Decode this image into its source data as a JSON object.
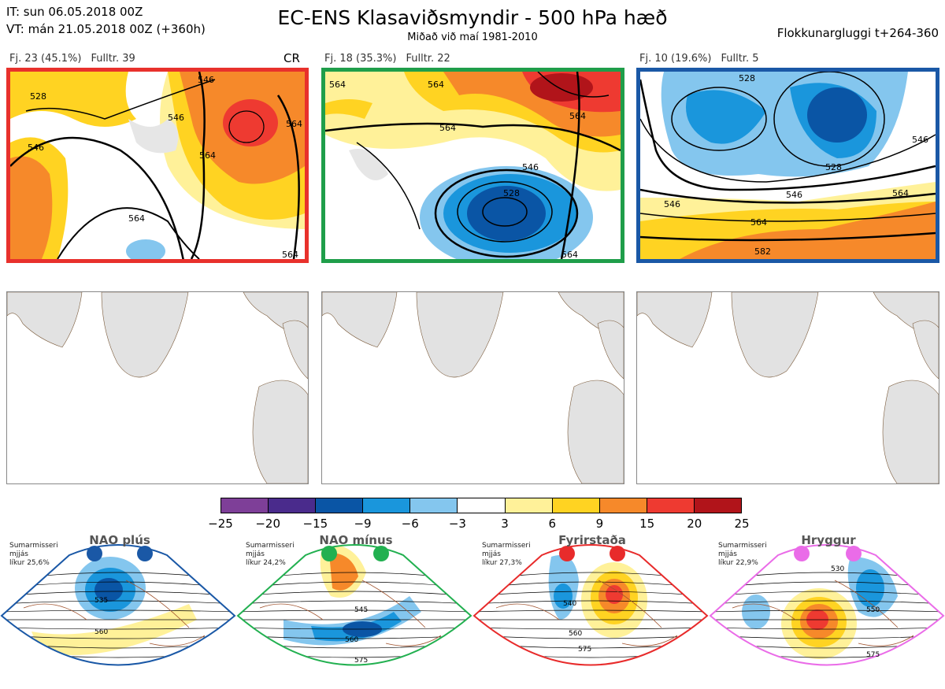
{
  "header": {
    "it_line": "IT: sun 06.05.2018 00Z",
    "vt_line": "VT: mán 21.05.2018 00Z  (+360h)",
    "title": "EC-ENS Klasaviðsmyndir - 500 hPa hæð",
    "subtitle": "Miðað við maí 1981-2010",
    "window": "Flokkunargluggi t+264-360"
  },
  "clusters": [
    {
      "fj": "Fj. 23 (45.1%)",
      "fulltr": "Fulltr. 39",
      "tag": "CR",
      "border_color": "#e8312c",
      "contour_labels": [
        "528",
        "546",
        "546",
        "564",
        "564",
        "546",
        "564",
        "564"
      ]
    },
    {
      "fj": "Fj. 18 (35.3%)",
      "fulltr": "Fulltr. 22",
      "tag": "",
      "border_color": "#1f9e4a",
      "contour_labels": [
        "564",
        "546",
        "528",
        "564",
        "564",
        "564",
        "564"
      ]
    },
    {
      "fj": "Fj. 10 (19.6%)",
      "fulltr": "Fulltr. 5",
      "tag": "",
      "border_color": "#1a58a6",
      "contour_labels": [
        "528",
        "528",
        "546",
        "546",
        "564",
        "564",
        "582",
        "546"
      ]
    }
  ],
  "colorbar": {
    "ticks": [
      "−25",
      "−20",
      "−15",
      "−9",
      "−6",
      "−3",
      "3",
      "6",
      "9",
      "15",
      "20",
      "25"
    ],
    "colors": [
      "#7e3f98",
      "#4a2b8c",
      "#0a55a5",
      "#1a96dc",
      "#84c6ee",
      "#ffffff",
      "#fff199",
      "#ffd322",
      "#f6892a",
      "#ee3a31",
      "#b1141a"
    ]
  },
  "regimes": [
    {
      "name": "NAO plús",
      "season": "Sumarmisseri",
      "smoothed": "mjjás",
      "prob": "líkur 25,6%",
      "color": "#1a58a6",
      "contour_labels": [
        "535",
        "560"
      ]
    },
    {
      "name": "NAO mínus",
      "season": "Sumarmisseri",
      "smoothed": "mjjás",
      "prob": "líkur 24,2%",
      "color": "#22b050",
      "contour_labels": [
        "545",
        "560",
        "575"
      ]
    },
    {
      "name": "Fyrirstaða",
      "season": "Sumarmisseri",
      "smoothed": "mjjás",
      "prob": "líkur 27,3%",
      "color": "#e82b2b",
      "contour_labels": [
        "540",
        "560",
        "575"
      ]
    },
    {
      "name": "Hryggur",
      "season": "Sumarmisseri",
      "smoothed": "mjjás",
      "prob": "líkur 22,9%",
      "color": "#ea6ce8",
      "contour_labels": [
        "530",
        "550",
        "575"
      ]
    }
  ]
}
